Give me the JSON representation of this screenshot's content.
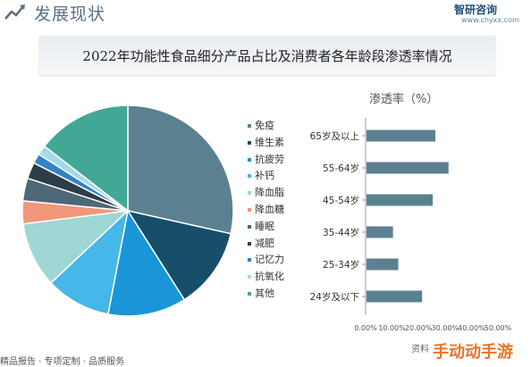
{
  "header": {
    "section_title": "发展现状",
    "logo_name": "智研咨询",
    "logo_url": "www.chyxx.com"
  },
  "banner": {
    "title": "2022年功能性食品细分产品占比及消费者各年龄段渗透率情况"
  },
  "colors": {
    "pie": [
      "#5b8191",
      "#174f6b",
      "#1a96d8",
      "#46b7e8",
      "#9fd7d4",
      "#f0967a",
      "#4e6878",
      "#2e3d48",
      "#2e84c8",
      "#a6d9e8",
      "#43a796"
    ],
    "bar": "#5b8191"
  },
  "chart_data": [
    {
      "type": "pie",
      "categories": [
        "免疫",
        "维生素",
        "抗疲劳",
        "补钙",
        "降血脂",
        "降血糖",
        "睡眠",
        "减肥",
        "记忆力",
        "抗氧化",
        "其他"
      ],
      "values": [
        28.5,
        12.5,
        12.0,
        10.0,
        10.0,
        3.5,
        3.5,
        2.5,
        1.5,
        1.5,
        14.5
      ],
      "legend_position": "right"
    },
    {
      "type": "bar",
      "orientation": "horizontal",
      "ylabel": "渗透率（%）",
      "categories": [
        "65岁及以上",
        "55-64岁",
        "45-54岁",
        "35-44岁",
        "25-34岁",
        "24岁及以下"
      ],
      "values": [
        26,
        31,
        25,
        10,
        12,
        21
      ],
      "xlim": [
        0,
        50
      ],
      "xticks": [
        "0.00%",
        "10.00%",
        "20.00%",
        "30.00%",
        "40.00%",
        "50.00%"
      ],
      "grid": false
    }
  ],
  "footer": {
    "text": "精品报告 · 专项定制 · 品质服务",
    "source": "资料",
    "watermark": "手动动手游"
  }
}
